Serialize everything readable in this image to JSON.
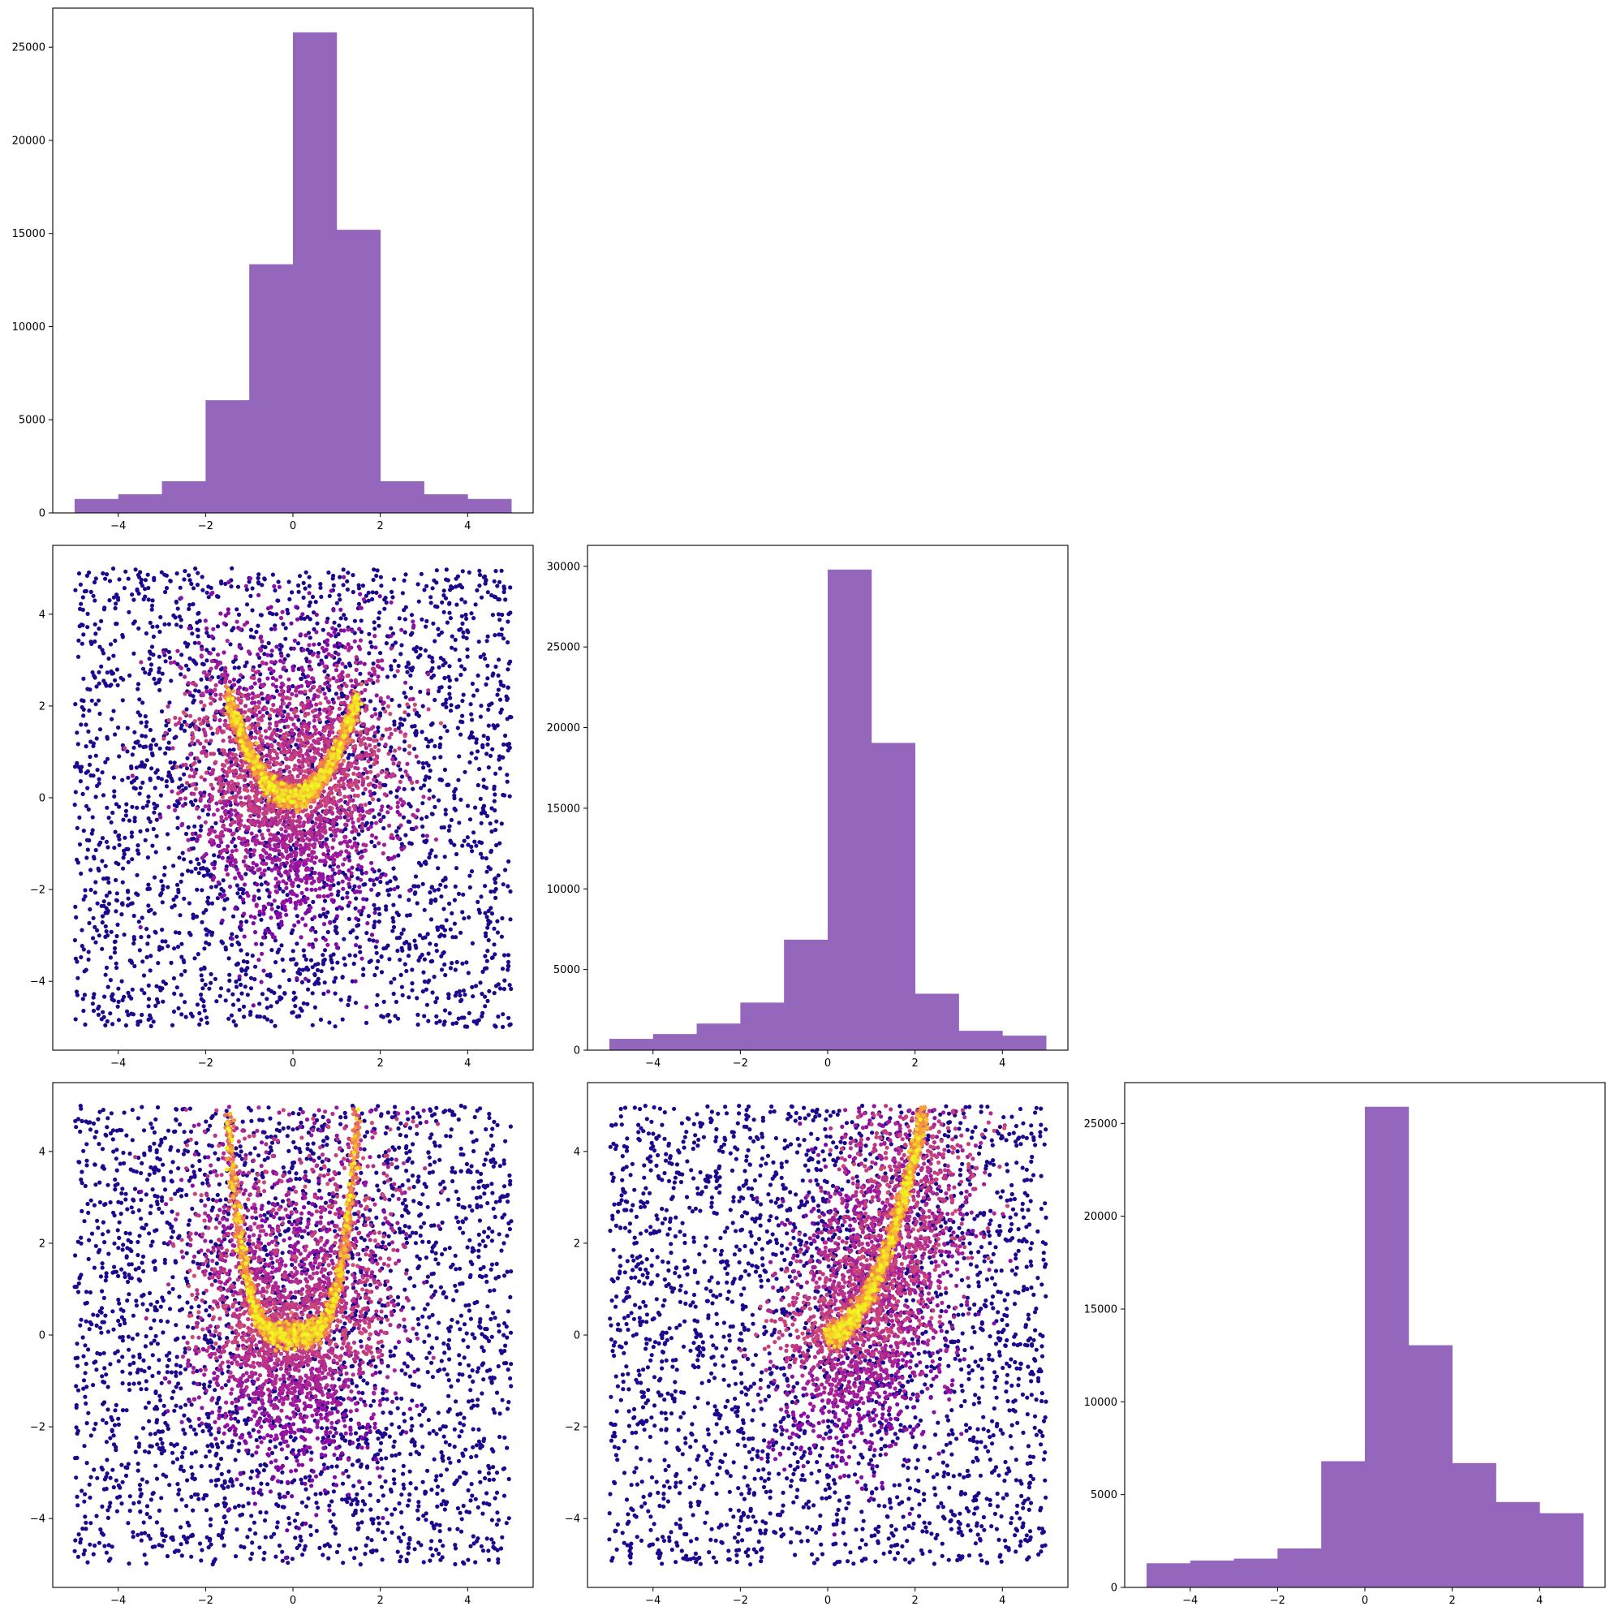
{
  "colors": {
    "histogram": "#9467bd",
    "density_colormap": "plasma"
  },
  "chart_data": [
    {
      "panel": "row1-col1",
      "type": "bar",
      "subtype": "histogram",
      "bin_edges": [
        -5,
        -4,
        -3,
        -2,
        -1,
        0,
        1,
        2,
        3,
        4,
        5
      ],
      "values": [
        750,
        1000,
        1700,
        6050,
        13350,
        25800,
        15200,
        1700,
        1000,
        750
      ],
      "xlim": [
        -5.5,
        5.5
      ],
      "ylim": [
        0,
        27100
      ],
      "xticks": [
        -4,
        -2,
        0,
        2,
        4
      ],
      "xtick_labels": [
        "−4",
        "−2",
        "0",
        "2",
        "4"
      ],
      "yticks": [
        0,
        5000,
        10000,
        15000,
        20000,
        25000
      ],
      "ytick_labels": [
        "0",
        "5000",
        "10000",
        "15000",
        "20000",
        "25000"
      ],
      "color": "#9467bd"
    },
    {
      "panel": "row2-col1",
      "type": "scatter",
      "subtype": "density-colored scatter",
      "xlim": [
        -5.5,
        5.5
      ],
      "ylim": [
        -5.5,
        5.5
      ],
      "xticks": [
        -4,
        -2,
        0,
        2,
        4
      ],
      "xtick_labels": [
        "−4",
        "−2",
        "0",
        "2",
        "4"
      ],
      "yticks": [
        -4,
        -2,
        0,
        2,
        4
      ],
      "ytick_labels": [
        "−4",
        "−2",
        "0",
        "2",
        "4"
      ],
      "point_range": {
        "x": [
          -5,
          5
        ],
        "y": [
          -5,
          5
        ]
      },
      "ridge": {
        "curve": "y = x^2",
        "x_range": [
          -1.5,
          1.5
        ]
      },
      "colormap": "plasma"
    },
    {
      "panel": "row2-col2",
      "type": "bar",
      "subtype": "histogram",
      "bin_edges": [
        -5,
        -4,
        -3,
        -2,
        -1,
        0,
        1,
        2,
        3,
        4,
        5
      ],
      "values": [
        700,
        1000,
        1650,
        2950,
        6850,
        29800,
        19050,
        3500,
        1200,
        900
      ],
      "xlim": [
        -5.5,
        5.5
      ],
      "ylim": [
        0,
        31300
      ],
      "xticks": [
        -4,
        -2,
        0,
        2,
        4
      ],
      "xtick_labels": [
        "−4",
        "−2",
        "0",
        "2",
        "4"
      ],
      "yticks": [
        0,
        5000,
        10000,
        15000,
        20000,
        25000,
        30000
      ],
      "ytick_labels": [
        "0",
        "5000",
        "10000",
        "15000",
        "20000",
        "25000",
        "30000"
      ],
      "color": "#9467bd"
    },
    {
      "panel": "row3-col1",
      "type": "scatter",
      "subtype": "density-colored scatter",
      "xlim": [
        -5.5,
        5.5
      ],
      "ylim": [
        -5.5,
        5.5
      ],
      "xticks": [
        -4,
        -2,
        0,
        2,
        4
      ],
      "xtick_labels": [
        "−4",
        "−2",
        "0",
        "2",
        "4"
      ],
      "yticks": [
        -4,
        -2,
        0,
        2,
        4
      ],
      "ytick_labels": [
        "−4",
        "−2",
        "0",
        "2",
        "4"
      ],
      "point_range": {
        "x": [
          -5,
          5
        ],
        "y": [
          -5,
          5
        ]
      },
      "ridge": {
        "curve": "y = x^4",
        "x_range": [
          -1.48,
          1.48
        ]
      },
      "colormap": "plasma"
    },
    {
      "panel": "row3-col2",
      "type": "scatter",
      "subtype": "density-colored scatter",
      "xlim": [
        -5.5,
        5.5
      ],
      "ylim": [
        -5.5,
        5.5
      ],
      "xticks": [
        -4,
        -2,
        0,
        2,
        4
      ],
      "xtick_labels": [
        "−4",
        "−2",
        "0",
        "2",
        "4"
      ],
      "yticks": [
        -4,
        -2,
        0,
        2,
        4
      ],
      "ytick_labels": [
        "−4",
        "−2",
        "0",
        "2",
        "4"
      ],
      "point_range": {
        "x": [
          -5,
          5
        ],
        "y": [
          -5,
          5
        ]
      },
      "ridge": {
        "curve": "y = x^2",
        "x_range": [
          0,
          2.2
        ]
      },
      "colormap": "plasma"
    },
    {
      "panel": "row3-col3",
      "type": "bar",
      "subtype": "histogram",
      "bin_edges": [
        -5,
        -4,
        -3,
        -2,
        -1,
        0,
        1,
        2,
        3,
        4,
        5
      ],
      "values": [
        1300,
        1450,
        1550,
        2100,
        6800,
        25900,
        13050,
        6700,
        4600,
        4000
      ],
      "xlim": [
        -5.5,
        5.5
      ],
      "ylim": [
        0,
        27200
      ],
      "xticks": [
        -4,
        -2,
        0,
        2,
        4
      ],
      "xtick_labels": [
        "−4",
        "−2",
        "0",
        "2",
        "4"
      ],
      "yticks": [
        0,
        5000,
        10000,
        15000,
        20000,
        25000
      ],
      "ytick_labels": [
        "0",
        "5000",
        "10000",
        "15000",
        "20000",
        "25000"
      ],
      "color": "#9467bd"
    }
  ]
}
